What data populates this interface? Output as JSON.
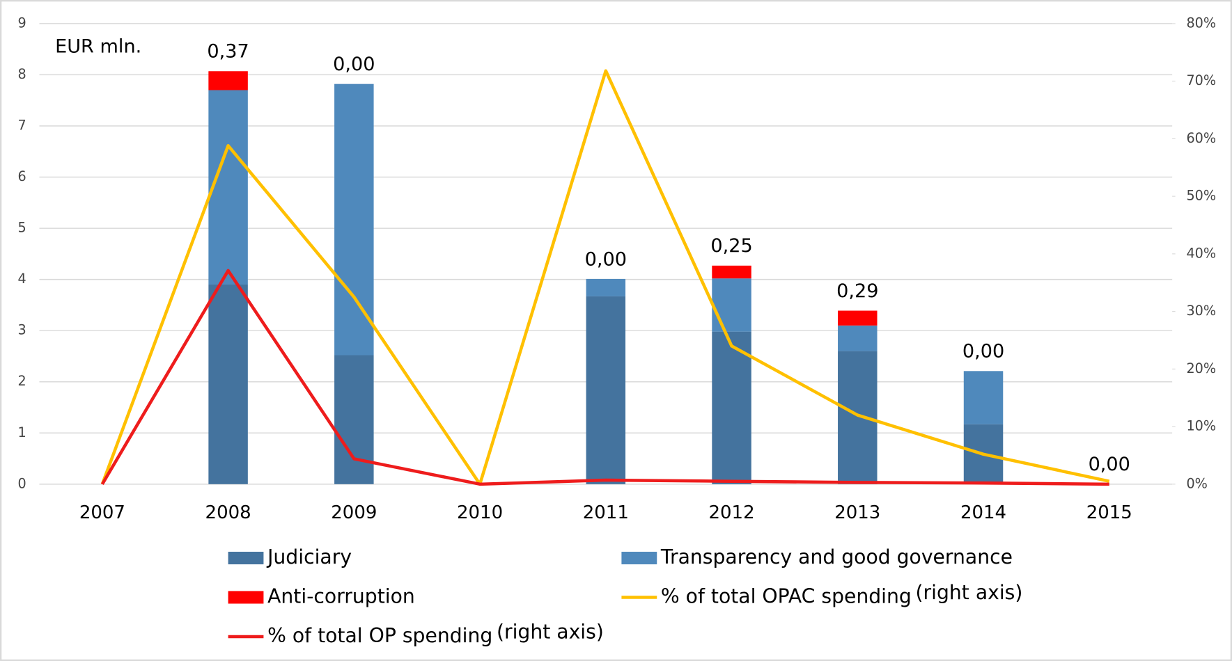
{
  "chart_data": {
    "type": "bar",
    "stacked": true,
    "y_label": "EUR mln.",
    "right_axis_note": "(right axis)",
    "categories": [
      "2007",
      "2008",
      "2009",
      "2010",
      "2011",
      "2012",
      "2013",
      "2014",
      "2015"
    ],
    "ylim": [
      0,
      9
    ],
    "yticks": [
      0,
      1,
      2,
      3,
      4,
      5,
      6,
      7,
      8,
      9
    ],
    "y2lim": [
      0,
      80
    ],
    "y2ticks": [
      {
        "value": 0,
        "label": "0%"
      },
      {
        "value": 10,
        "label": "10%"
      },
      {
        "value": 20,
        "label": "20%"
      },
      {
        "value": 30,
        "label": "30%"
      },
      {
        "value": 40,
        "label": "40%"
      },
      {
        "value": 50,
        "label": "50%"
      },
      {
        "value": 60,
        "label": "60%"
      },
      {
        "value": 70,
        "label": "70%"
      },
      {
        "value": 80,
        "label": "80%"
      }
    ],
    "grid": true,
    "series": [
      {
        "name": "Judiciary",
        "type": "bar",
        "color": "#44739e",
        "values": [
          0,
          3.9,
          2.52,
          0,
          3.67,
          2.98,
          2.6,
          1.17,
          0
        ]
      },
      {
        "name": "Transparency and good governance",
        "type": "bar",
        "color": "#4f89bc",
        "values": [
          0,
          3.8,
          5.3,
          0,
          0.34,
          1.04,
          0.5,
          1.04,
          0
        ]
      },
      {
        "name": "Anti-corruption",
        "type": "bar",
        "color": "#ff0000",
        "values": [
          0,
          0.37,
          0,
          0,
          0,
          0.25,
          0.29,
          0,
          0
        ],
        "value_labels": [
          null,
          "0,37",
          "0,00",
          null,
          "0,00",
          "0,25",
          "0,29",
          "0,00",
          "0,00"
        ]
      },
      {
        "name": "% of total OPAC spending",
        "type": "line",
        "axis": "y2",
        "color": "#ffc000",
        "right_note": true,
        "values": [
          0,
          58.8,
          32.5,
          0,
          71.8,
          24,
          12,
          5.2,
          0.5
        ]
      },
      {
        "name": "% of total OP spending",
        "type": "line",
        "axis": "y2",
        "color": "#ee1c1c",
        "right_note": true,
        "values": [
          0,
          37.1,
          4.4,
          0,
          0.7,
          0.5,
          0.3,
          0.2,
          0
        ]
      }
    ]
  }
}
